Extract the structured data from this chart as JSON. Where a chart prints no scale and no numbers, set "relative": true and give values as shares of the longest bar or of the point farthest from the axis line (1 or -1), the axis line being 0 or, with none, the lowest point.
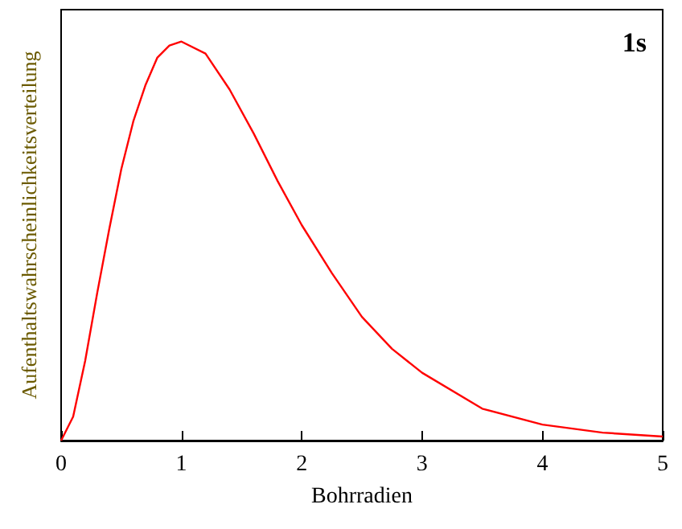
{
  "chart_data": {
    "type": "line",
    "relative": true,
    "xlabel": "Bohrradien",
    "ylabel": "Aufenthaltswahrscheinlichkeitsverteilung",
    "annotations": [
      "1s"
    ],
    "x": [
      0,
      0.1,
      0.2,
      0.3,
      0.4,
      0.5,
      0.6,
      0.7,
      0.8,
      0.9,
      1,
      1.2,
      1.4,
      1.6,
      1.8,
      2,
      2.25,
      2.5,
      2.75,
      3,
      3.5,
      4,
      4.5,
      5
    ],
    "series": [
      {
        "color": "#ff0000",
        "values": [
          0,
          0.06,
          0.2,
          0.37,
          0.53,
          0.68,
          0.8,
          0.89,
          0.96,
          0.99,
          1,
          0.97,
          0.88,
          0.77,
          0.65,
          0.54,
          0.42,
          0.31,
          0.23,
          0.17,
          0.08,
          0.04,
          0.02,
          0.01
        ]
      }
    ],
    "xlim": [
      0,
      5
    ],
    "xticks": [
      0,
      1,
      2,
      3,
      4,
      5
    ],
    "grid": false,
    "marker": "none",
    "line_style": "solid"
  }
}
